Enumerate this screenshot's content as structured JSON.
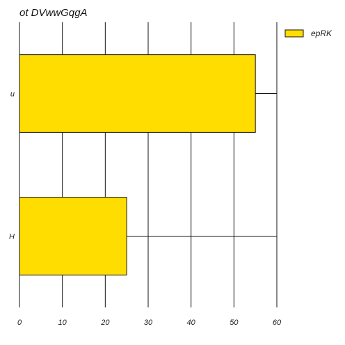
{
  "chart_data": {
    "type": "bar",
    "orientation": "horizontal",
    "title": "ot DVwwGqgA",
    "categories": [
      "u",
      "H"
    ],
    "series": [
      {
        "name": "epRK",
        "values": [
          55,
          25
        ]
      }
    ],
    "xlabel": "",
    "ylabel": "",
    "xlim": [
      0,
      60
    ],
    "xticks": [
      0,
      10,
      20,
      30,
      40,
      50,
      60
    ],
    "grid": "vertical",
    "legend": "top-right",
    "colors": {
      "bar": "#ffdd00",
      "edge": "#111111",
      "grid": "#111111",
      "background": "#ffffff"
    }
  }
}
